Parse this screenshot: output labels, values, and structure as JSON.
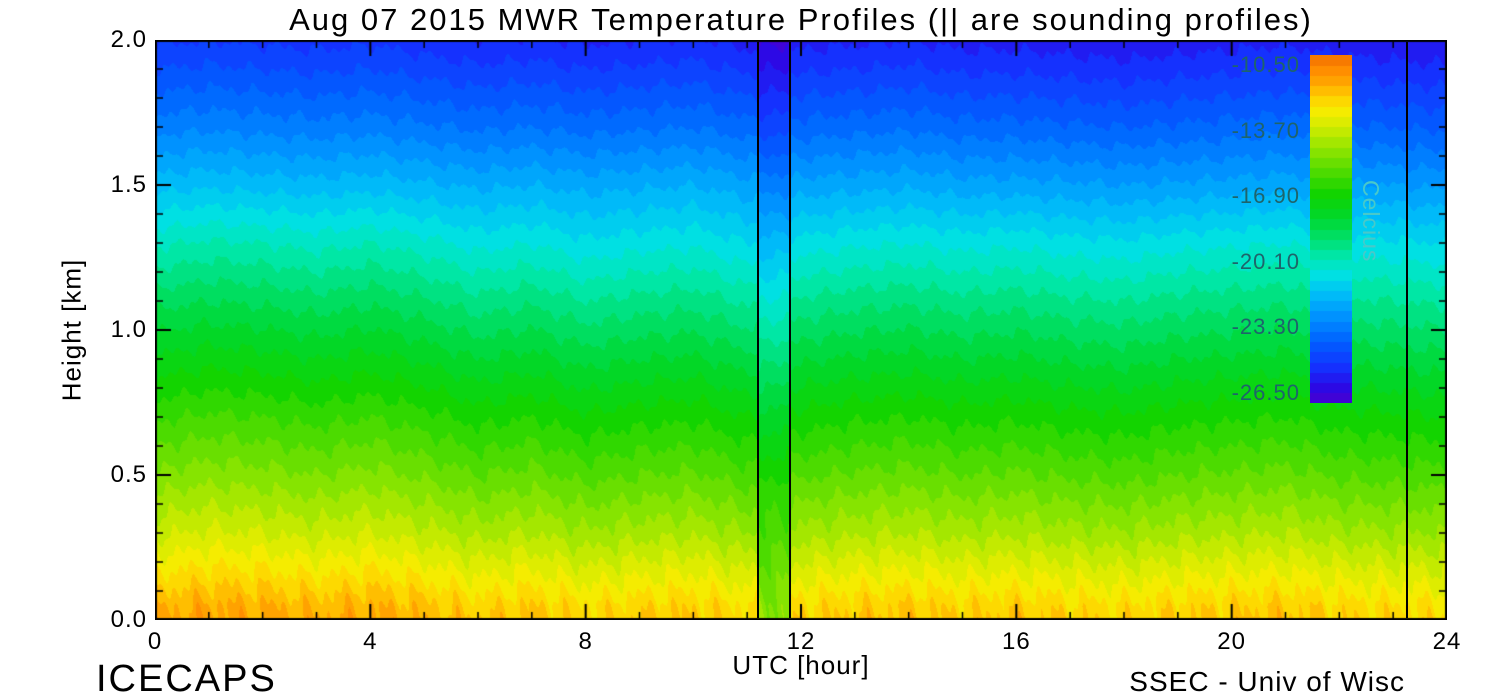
{
  "title": "Aug 07 2015 MWR Temperature Profiles (|| are sounding profiles)",
  "footer": {
    "project": "ICECAPS",
    "credit": "SSEC - Univ of Wisc"
  },
  "axes": {
    "x": {
      "title": "UTC [hour]",
      "min": 0,
      "max": 24,
      "tick_labels": [
        "0",
        "4",
        "8",
        "12",
        "16",
        "20",
        "24"
      ],
      "tick_values": [
        0,
        4,
        8,
        12,
        16,
        20,
        24
      ],
      "minor_step": 1
    },
    "y": {
      "title": "Height [km]",
      "min": 0,
      "max": 2,
      "tick_labels": [
        "0.0",
        "0.5",
        "1.0",
        "1.5",
        "2.0"
      ],
      "tick_values": [
        0,
        0.5,
        1,
        1.5,
        2
      ],
      "minor_step": 0.1
    }
  },
  "colorbar": {
    "title": "Celcius",
    "tick_labels": [
      "-10.50",
      "-13.70",
      "-16.90",
      "-20.10",
      "-23.30",
      "-26.50"
    ],
    "tick_values": [
      -10.5,
      -13.7,
      -16.9,
      -20.1,
      -23.3,
      -26.5
    ],
    "top_value": -10,
    "bottom_value": -27,
    "number_color": "#1e646b",
    "title_color": "#49c9c9"
  },
  "sounding_lines_hours": [
    11.2,
    11.8,
    23.25
  ],
  "chart_data": {
    "type": "heatmap",
    "title": "Aug 07 2015 MWR Temperature Profiles (|| are sounding profiles)",
    "xlabel": "UTC [hour]",
    "ylabel": "Height [km]",
    "value_label": "Celcius",
    "value_range_c": [
      -27,
      -10
    ],
    "band_step_c": 0.5,
    "x_hours": [
      0,
      1,
      2,
      3,
      4,
      5,
      6,
      7,
      8,
      9,
      10,
      11,
      12,
      13,
      14,
      15,
      16,
      17,
      18,
      19,
      20,
      21,
      22,
      23,
      24
    ],
    "y_km": [
      0,
      0.05,
      0.1,
      0.2,
      0.3,
      0.5,
      0.7,
      0.9,
      1.1,
      1.3,
      1.5,
      1.7,
      1.9,
      2.0
    ],
    "values_c": [
      [
        -11.4,
        -11.2,
        -11.3,
        -11.5,
        -11.3,
        -11.6,
        -12.0,
        -11.8,
        -12.2,
        -12.0,
        -11.9,
        -12.3,
        -12.1,
        -11.9,
        -11.8,
        -12.0,
        -11.9,
        -12.1,
        -12.2,
        -12.0,
        -11.9,
        -11.8,
        -12.1,
        -12.2,
        -12.3
      ],
      [
        -11.6,
        -11.4,
        -11.5,
        -11.7,
        -11.5,
        -11.8,
        -12.2,
        -12.0,
        -12.4,
        -12.2,
        -12.1,
        -12.5,
        -12.3,
        -12.1,
        -12.0,
        -12.2,
        -12.1,
        -12.3,
        -12.4,
        -12.2,
        -12.1,
        -12.0,
        -12.3,
        -12.4,
        -12.5
      ],
      [
        -12.0,
        -11.8,
        -11.9,
        -12.1,
        -11.9,
        -12.2,
        -12.6,
        -12.4,
        -12.8,
        -12.6,
        -12.5,
        -12.9,
        -12.7,
        -12.5,
        -12.4,
        -12.6,
        -12.5,
        -12.7,
        -12.8,
        -12.6,
        -12.5,
        -12.4,
        -12.7,
        -12.8,
        -12.9
      ],
      [
        -12.8,
        -12.6,
        -12.7,
        -12.9,
        -12.7,
        -13.0,
        -13.4,
        -13.2,
        -13.6,
        -13.4,
        -13.3,
        -13.7,
        -13.5,
        -13.3,
        -13.2,
        -13.4,
        -13.3,
        -13.5,
        -13.6,
        -13.4,
        -13.3,
        -13.2,
        -13.5,
        -13.6,
        -13.7
      ],
      [
        -13.6,
        -13.4,
        -13.5,
        -13.7,
        -13.5,
        -13.8,
        -14.2,
        -14.0,
        -14.4,
        -14.2,
        -14.1,
        -14.5,
        -14.3,
        -14.1,
        -14.0,
        -14.2,
        -14.1,
        -14.3,
        -14.4,
        -14.2,
        -14.1,
        -14.0,
        -14.3,
        -14.4,
        -14.5
      ],
      [
        -14.9,
        -14.7,
        -14.8,
        -15.0,
        -14.8,
        -15.1,
        -15.5,
        -15.3,
        -15.7,
        -15.5,
        -15.4,
        -15.8,
        -15.6,
        -15.4,
        -15.3,
        -15.5,
        -15.4,
        -15.6,
        -15.7,
        -15.5,
        -15.4,
        -15.3,
        -15.6,
        -15.7,
        -15.8
      ],
      [
        -16.1,
        -15.9,
        -16.0,
        -16.2,
        -16.0,
        -16.3,
        -16.7,
        -16.5,
        -16.9,
        -16.7,
        -16.6,
        -17.0,
        -16.8,
        -16.6,
        -16.5,
        -16.7,
        -16.6,
        -16.8,
        -16.9,
        -16.7,
        -16.6,
        -16.5,
        -16.8,
        -16.9,
        -17.0
      ],
      [
        -17.4,
        -17.2,
        -17.3,
        -17.5,
        -17.3,
        -17.6,
        -18.0,
        -17.8,
        -18.2,
        -18.0,
        -17.9,
        -18.3,
        -18.1,
        -17.9,
        -17.8,
        -18.0,
        -17.9,
        -18.1,
        -18.2,
        -18.0,
        -17.9,
        -17.8,
        -18.1,
        -18.2,
        -18.3
      ],
      [
        -18.7,
        -18.5,
        -18.6,
        -18.8,
        -18.6,
        -18.9,
        -19.3,
        -19.1,
        -19.5,
        -19.3,
        -19.2,
        -19.6,
        -19.4,
        -19.2,
        -19.1,
        -19.3,
        -19.2,
        -19.4,
        -19.5,
        -19.3,
        -19.2,
        -19.1,
        -19.4,
        -19.5,
        -19.6
      ],
      [
        -20.1,
        -19.9,
        -20.0,
        -20.2,
        -20.0,
        -20.3,
        -20.7,
        -20.5,
        -20.9,
        -20.7,
        -20.6,
        -21.0,
        -20.8,
        -20.6,
        -20.5,
        -20.7,
        -20.6,
        -20.8,
        -20.9,
        -20.7,
        -20.6,
        -20.5,
        -20.8,
        -20.9,
        -21.0
      ],
      [
        -21.7,
        -21.6,
        -21.7,
        -21.8,
        -21.7,
        -21.9,
        -22.1,
        -22.0,
        -22.2,
        -22.1,
        -22.0,
        -22.3,
        -22.3,
        -22.2,
        -22.1,
        -22.3,
        -22.3,
        -22.4,
        -22.5,
        -22.4,
        -22.3,
        -22.2,
        -22.4,
        -22.5,
        -22.6
      ],
      [
        -23.2,
        -23.1,
        -23.2,
        -23.3,
        -23.2,
        -23.4,
        -23.6,
        -23.5,
        -23.7,
        -23.6,
        -23.5,
        -23.8,
        -23.8,
        -23.7,
        -23.6,
        -23.8,
        -23.8,
        -23.9,
        -24.0,
        -23.9,
        -23.8,
        -23.7,
        -23.9,
        -24.0,
        -24.1
      ],
      [
        -24.5,
        -24.4,
        -24.5,
        -24.6,
        -24.5,
        -24.7,
        -24.9,
        -24.8,
        -25.0,
        -24.9,
        -24.8,
        -25.1,
        -25.1,
        -25.0,
        -24.9,
        -25.1,
        -25.1,
        -25.2,
        -25.3,
        -25.2,
        -25.1,
        -25.0,
        -25.2,
        -25.3,
        -25.4
      ],
      [
        -25.1,
        -25.0,
        -25.1,
        -25.2,
        -25.1,
        -25.3,
        -25.5,
        -25.4,
        -25.6,
        -25.5,
        -25.4,
        -25.7,
        -25.7,
        -25.6,
        -25.5,
        -25.7,
        -25.7,
        -25.8,
        -25.9,
        -25.8,
        -25.7,
        -25.6,
        -25.8,
        -25.9,
        -26.0
      ]
    ],
    "palette_stops": [
      [
        -27.0,
        "#4a00d0"
      ],
      [
        -26.2,
        "#2b0ae6"
      ],
      [
        -25.2,
        "#1433ff"
      ],
      [
        -24.0,
        "#0060ff"
      ],
      [
        -22.8,
        "#0090ff"
      ],
      [
        -21.6,
        "#00c0f8"
      ],
      [
        -20.7,
        "#00e2e2"
      ],
      [
        -19.9,
        "#00e8b0"
      ],
      [
        -19.0,
        "#00e070"
      ],
      [
        -18.0,
        "#00d830"
      ],
      [
        -16.8,
        "#10d400"
      ],
      [
        -15.6,
        "#55dc00"
      ],
      [
        -14.5,
        "#95e600"
      ],
      [
        -13.6,
        "#cceb00"
      ],
      [
        -12.8,
        "#f4ee00"
      ],
      [
        -12.1,
        "#ffd300"
      ],
      [
        -11.4,
        "#ffa800"
      ],
      [
        -10.6,
        "#ff8800"
      ],
      [
        -10.0,
        "#f27100"
      ]
    ]
  }
}
